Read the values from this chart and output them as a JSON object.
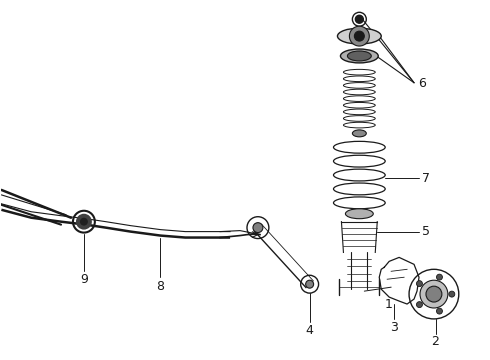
{
  "background_color": "#ffffff",
  "figure_width": 4.9,
  "figure_height": 3.6,
  "dpi": 100,
  "line_color": "#1a1a1a",
  "label_fontsize": 9
}
